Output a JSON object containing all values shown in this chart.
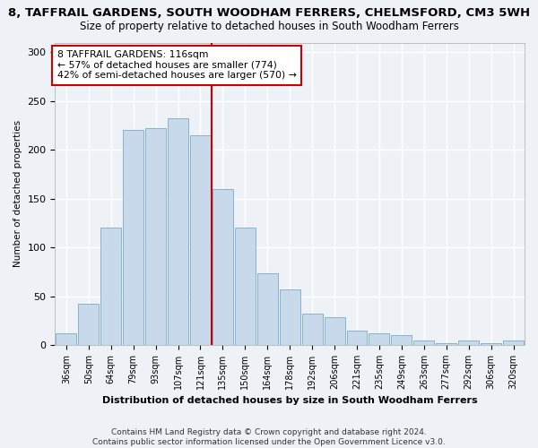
{
  "title": "8, TAFFRAIL GARDENS, SOUTH WOODHAM FERRERS, CHELMSFORD, CM3 5WH",
  "subtitle": "Size of property relative to detached houses in South Woodham Ferrers",
  "xlabel": "Distribution of detached houses by size in South Woodham Ferrers",
  "ylabel": "Number of detached properties",
  "bar_labels": [
    "36sqm",
    "50sqm",
    "64sqm",
    "79sqm",
    "93sqm",
    "107sqm",
    "121sqm",
    "135sqm",
    "150sqm",
    "164sqm",
    "178sqm",
    "192sqm",
    "206sqm",
    "221sqm",
    "235sqm",
    "249sqm",
    "263sqm",
    "277sqm",
    "292sqm",
    "306sqm",
    "320sqm"
  ],
  "bar_values": [
    12,
    42,
    120,
    220,
    222,
    232,
    215,
    160,
    120,
    73,
    57,
    32,
    28,
    15,
    12,
    10,
    5,
    2,
    5,
    2,
    5
  ],
  "bar_color": "#c8d9eb",
  "bar_edge_color": "#7aaac8",
  "vline_x": 6.5,
  "vline_color": "#cc0000",
  "annotation_text": "8 TAFFRAIL GARDENS: 116sqm\n← 57% of detached houses are smaller (774)\n42% of semi-detached houses are larger (570) →",
  "annotation_box_color": "#cc0000",
  "footer": "Contains HM Land Registry data © Crown copyright and database right 2024.\nContains public sector information licensed under the Open Government Licence v3.0.",
  "ylim": [
    0,
    310
  ],
  "background_color": "#eef2f7",
  "plot_background": "#eef2f7",
  "title_fontsize": 9.5,
  "subtitle_fontsize": 8.5
}
